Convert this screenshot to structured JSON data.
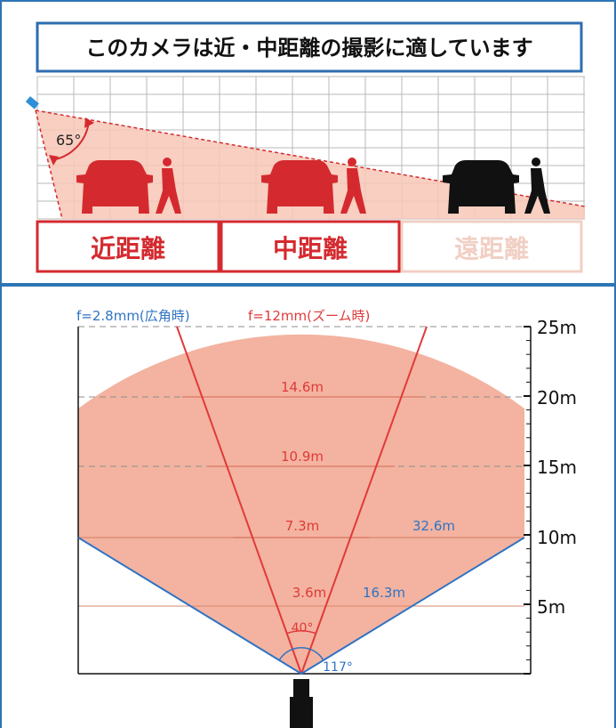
{
  "top_panel": {
    "title": "このカメラは近・中距離の撮影に適しています",
    "angle_label": "65°",
    "ranges": [
      {
        "label": "近距離",
        "state": "active"
      },
      {
        "label": "中距離",
        "state": "active"
      },
      {
        "label": "遠距離",
        "state": "inactive"
      }
    ]
  },
  "bottom_panel": {
    "legend_wide": "f=2.8mm(広角時)",
    "legend_zoom": "f=12mm(ズーム時)",
    "axis_labels": [
      "25m",
      "20m",
      "15m",
      "10m",
      "5m"
    ],
    "zoom_widths": [
      "14.6m",
      "10.9m",
      "7.3m",
      "3.6m"
    ],
    "wide_widths": [
      "32.6m",
      "16.3m"
    ],
    "zoom_angle": "40°",
    "wide_angle": "117°"
  },
  "colors": {
    "frame_blue": "#2e74b5",
    "title_border": "#2e6db0",
    "red": "#d42a2f",
    "pale_red": "#f1cfc4",
    "fill_salmon": "#f3b3a0",
    "wide_blue": "#2f73c4",
    "car_red": "#d42a2f",
    "car_black": "#111111"
  }
}
